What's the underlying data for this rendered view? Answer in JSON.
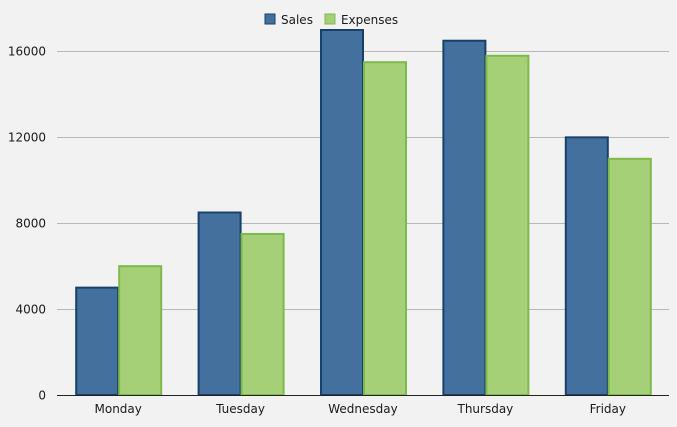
{
  "chart_data": {
    "type": "bar",
    "categories": [
      "Monday",
      "Tuesday",
      "Wednesday",
      "Thursday",
      "Friday"
    ],
    "series": [
      {
        "name": "Sales",
        "values": [
          5000,
          8500,
          17000,
          16500,
          12000
        ],
        "fill": "#44709d",
        "stroke": "#17406d"
      },
      {
        "name": "Expenses",
        "values": [
          6000,
          7500,
          15500,
          15800,
          11000
        ],
        "fill": "#a5d078",
        "stroke": "#7fb94a"
      }
    ],
    "ylim": [
      0,
      17000
    ],
    "yticks": [
      0,
      4000,
      8000,
      12000,
      16000
    ],
    "legend": "top-center",
    "grid": true,
    "title": "",
    "xlabel": "",
    "ylabel": ""
  }
}
